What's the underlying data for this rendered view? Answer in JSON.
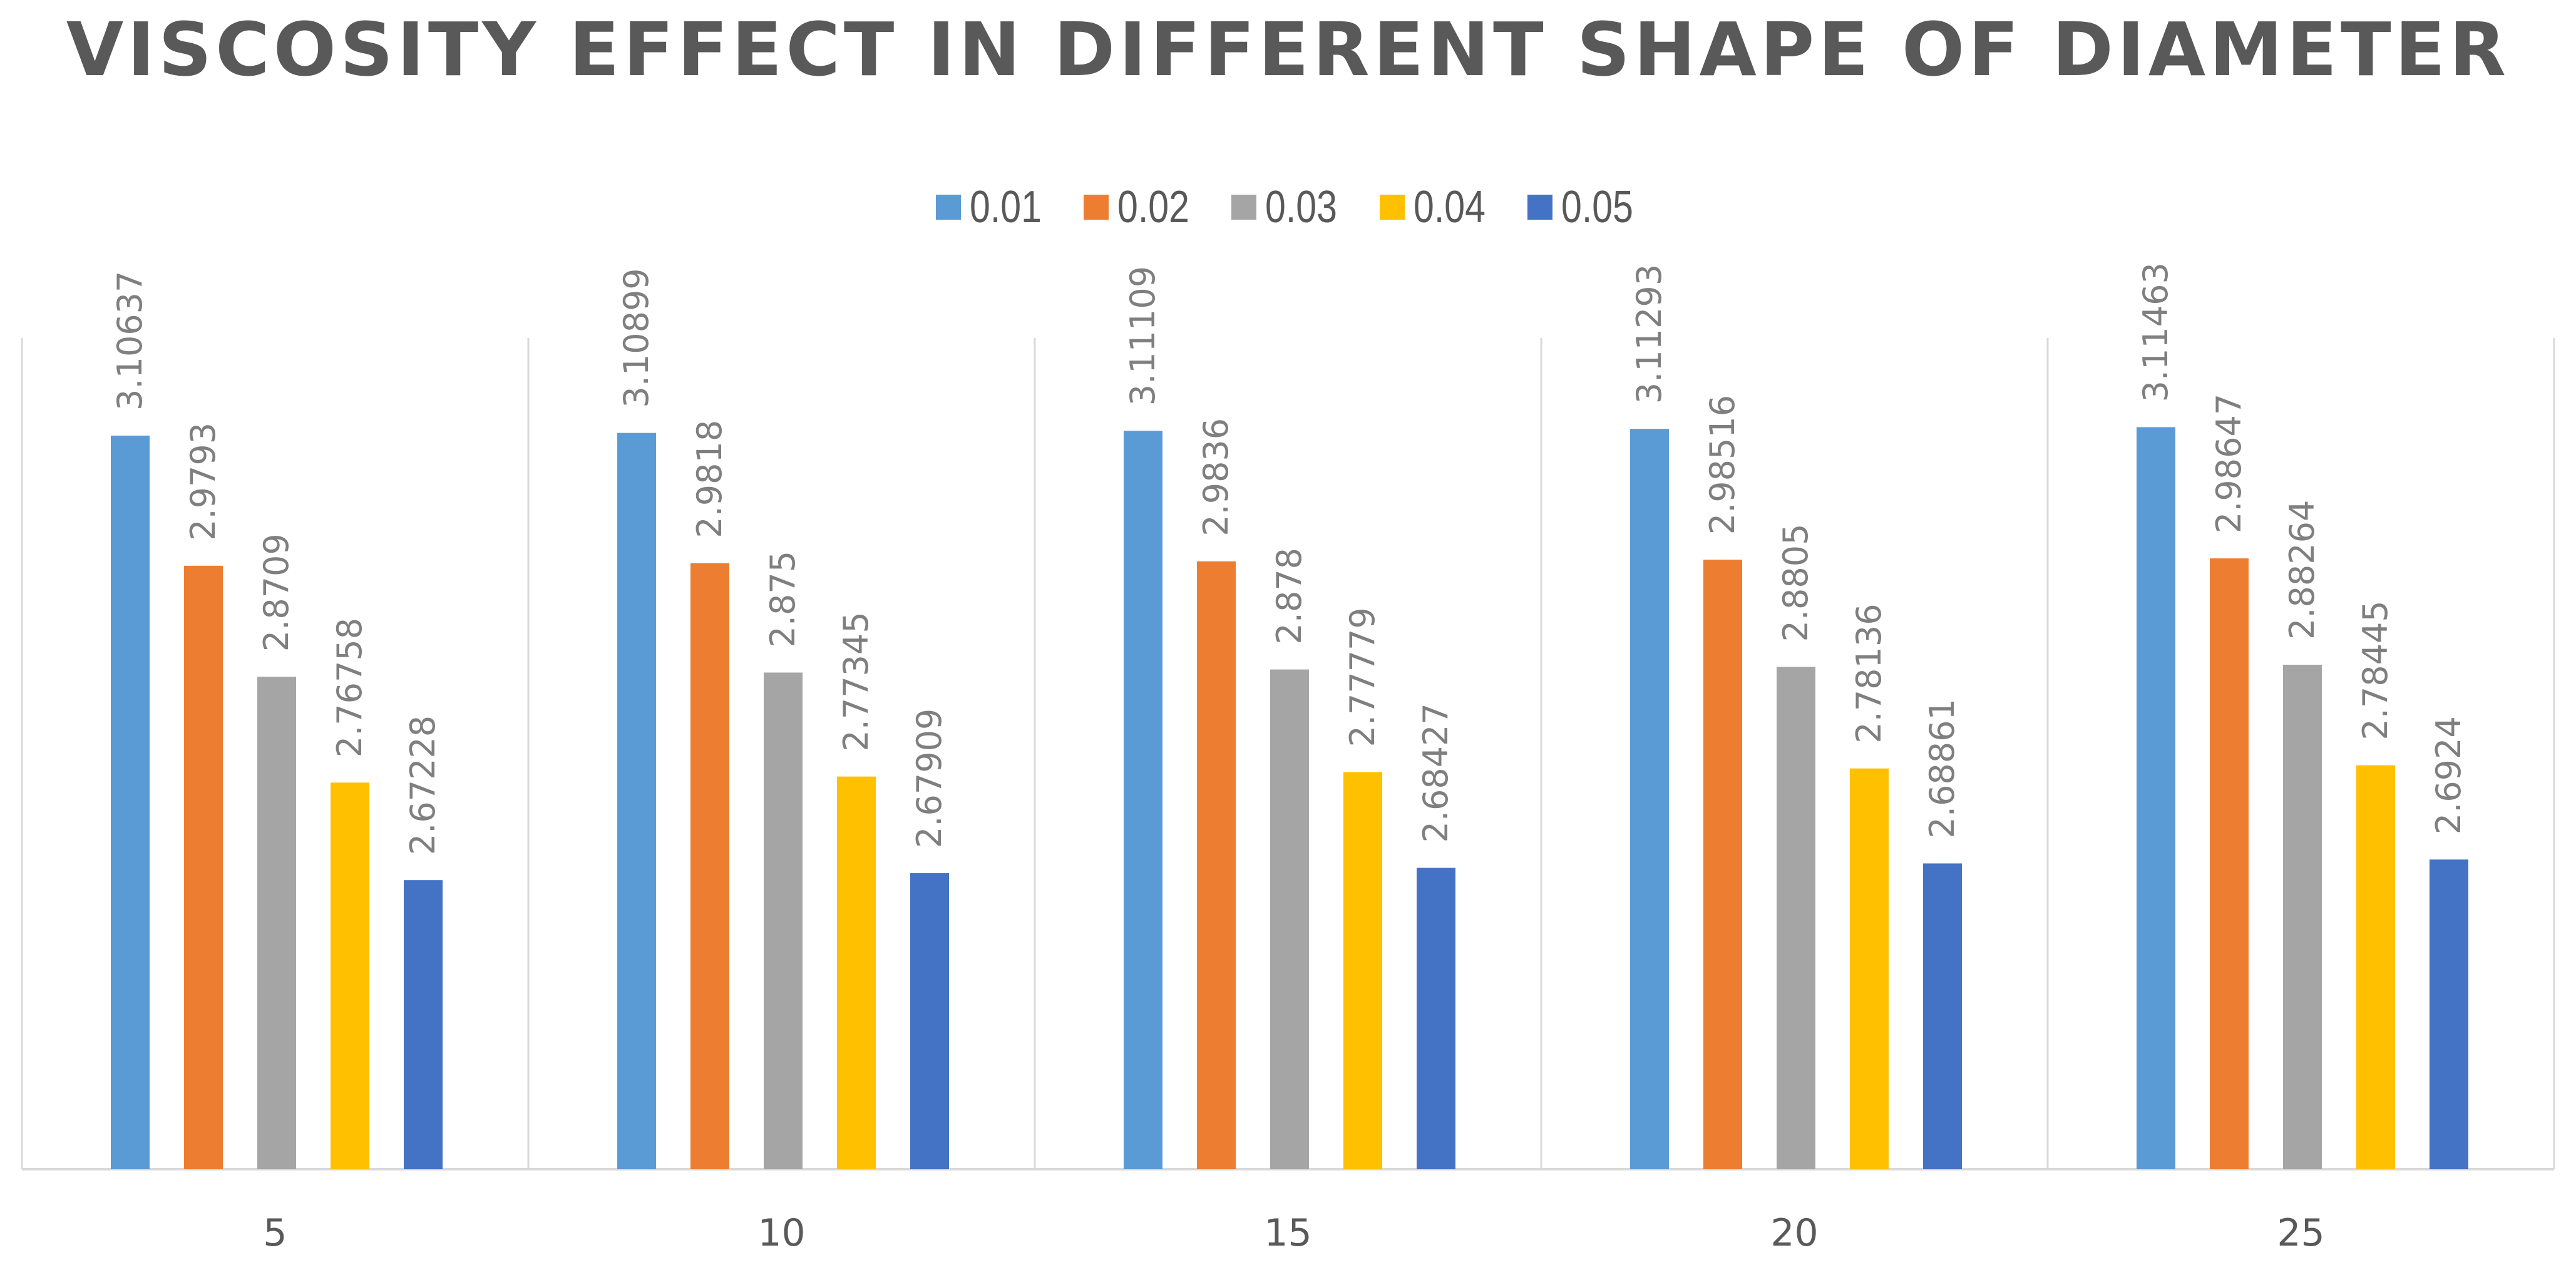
{
  "chart_data": {
    "type": "bar",
    "title": "VISCOSITY EFFECT IN DIFFERENT SHAPE OF DIAMETER",
    "xlabel": "",
    "ylabel": "",
    "categories": [
      "5",
      "10",
      "15",
      "20",
      "25"
    ],
    "series": [
      {
        "name": "0.01",
        "color": "#5B9BD5",
        "values": [
          3.10637,
          3.10899,
          3.11109,
          3.11293,
          3.11463
        ],
        "labels": [
          "3.10637",
          "3.10899",
          "3.11109",
          "3.11293",
          "3.11463"
        ]
      },
      {
        "name": "0.02",
        "color": "#ED7D31",
        "values": [
          2.9793,
          2.9818,
          2.9836,
          2.98516,
          2.98647
        ],
        "labels": [
          "2.9793",
          "2.9818",
          "2.9836",
          "2.98516",
          "2.98647"
        ]
      },
      {
        "name": "0.03",
        "color": "#A5A5A5",
        "values": [
          2.8709,
          2.875,
          2.878,
          2.8805,
          2.88264
        ],
        "labels": [
          "2.8709",
          "2.875",
          "2.878",
          "2.8805",
          "2.88264"
        ]
      },
      {
        "name": "0.04",
        "color": "#FFC000",
        "values": [
          2.76758,
          2.77345,
          2.77779,
          2.78136,
          2.78445
        ],
        "labels": [
          "2.76758",
          "2.77345",
          "2.77779",
          "2.78136",
          "2.78445"
        ]
      },
      {
        "name": "0.05",
        "color": "#4472C4",
        "values": [
          2.67228,
          2.67909,
          2.68427,
          2.68861,
          2.6924
        ],
        "labels": [
          "2.67228",
          "2.67909",
          "2.68427",
          "2.68861",
          "2.6924"
        ]
      }
    ],
    "ylim": [
      2.39,
      3.11
    ],
    "grid": false,
    "legend": "top-center",
    "data_labels": "rotated-vertical"
  }
}
